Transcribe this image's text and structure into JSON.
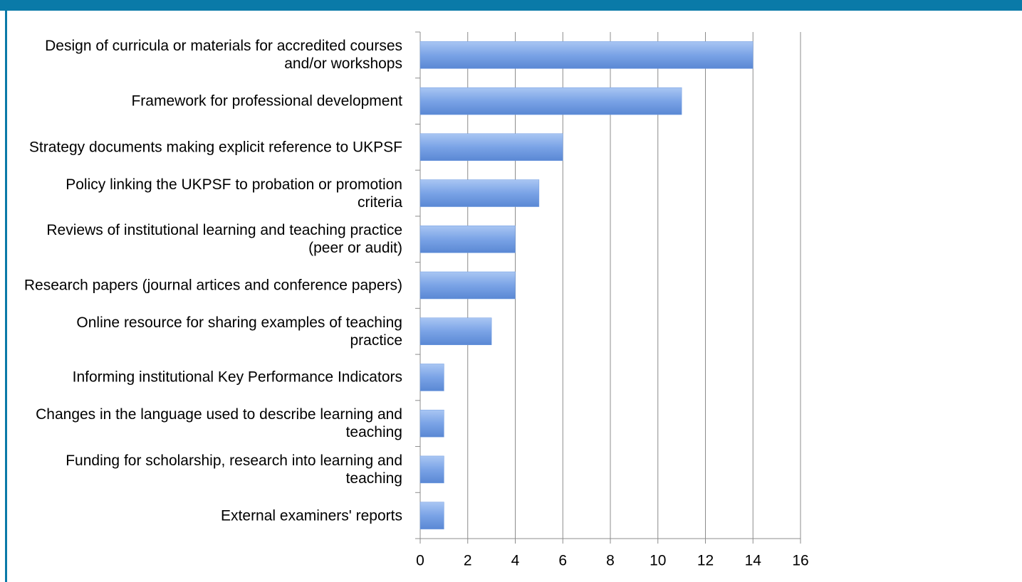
{
  "chart_data": {
    "type": "bar",
    "orientation": "horizontal",
    "categories": [
      "Design of curricula or materials for accredited courses and/or workshops",
      "Framework for professional development",
      "Strategy documents making explicit reference to UKPSF",
      "Policy linking the UKPSF to probation or promotion criteria",
      "Reviews of institutional learning and teaching practice (peer or audit)",
      "Research papers (journal artices and conference papers)",
      "Online resource for sharing examples of teaching practice",
      "Informing institutional Key Performance Indicators",
      "Changes in the language used to describe learning and teaching",
      "Funding for scholarship, research into learning and teaching",
      "External examiners' reports"
    ],
    "values": [
      14,
      11,
      6,
      5,
      4,
      4,
      3,
      1,
      1,
      1,
      1
    ],
    "color": "#6f9be0",
    "xlim": [
      0,
      16
    ],
    "xticks": [
      0,
      2,
      4,
      6,
      8,
      10,
      12,
      14,
      16
    ],
    "grid": true
  }
}
